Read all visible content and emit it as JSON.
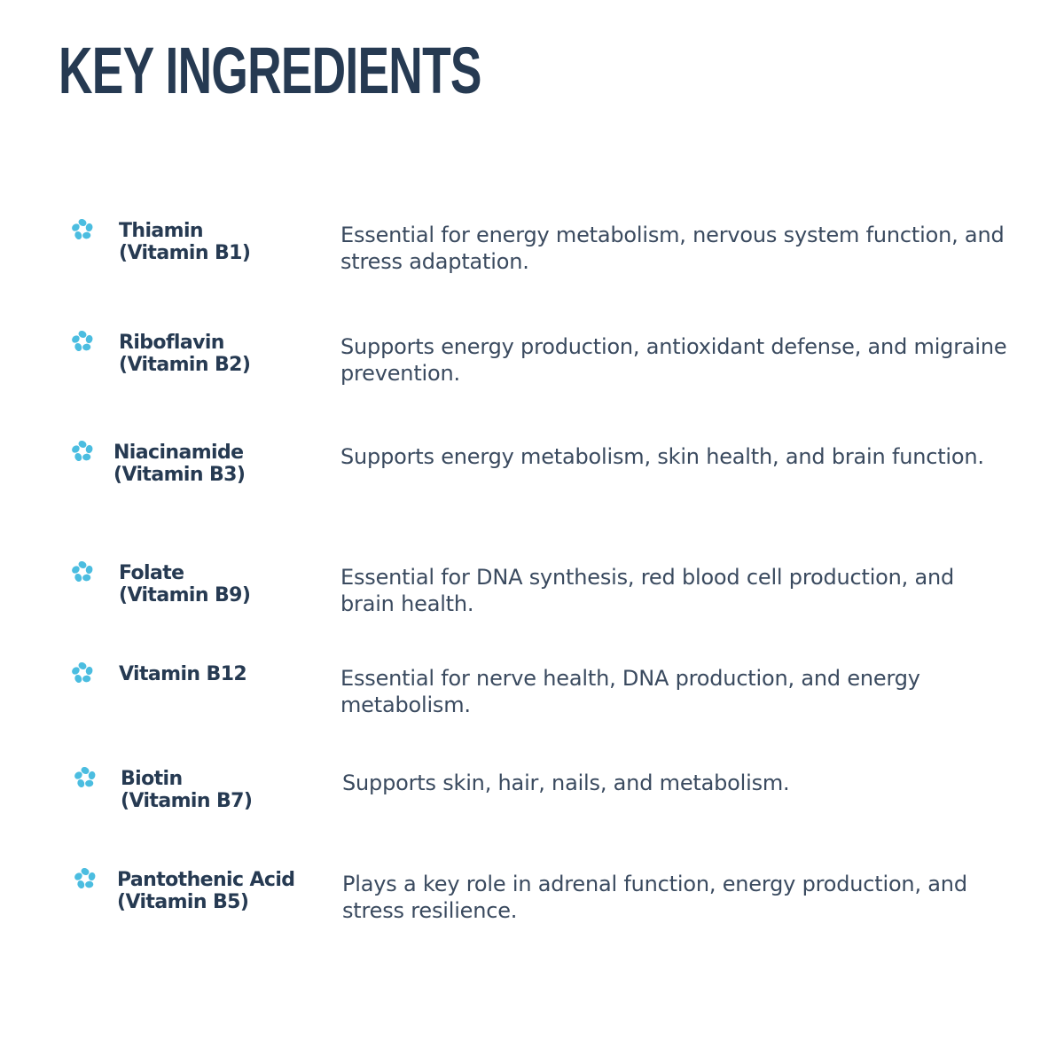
{
  "title": "KEY INGREDIENTS",
  "icon": {
    "name": "flower-dots-icon",
    "color": "#4bbde0"
  },
  "ingredients": [
    {
      "name": "Thiamin",
      "sub": "(Vitamin B1)",
      "desc": "Essential for energy metabolism, nervous system function, and stress adaptation."
    },
    {
      "name": "Riboflavin",
      "sub": "(Vitamin B2)",
      "desc": "Supports energy production, antioxidant defense, and migraine prevention."
    },
    {
      "name": "Niacinamide",
      "sub": "(Vitamin B3)",
      "desc": "Supports energy metabolism, skin health, and brain function."
    },
    {
      "name": "Folate",
      "sub": "(Vitamin B9)",
      "desc": "Essential for DNA synthesis, red blood cell production, and brain health."
    },
    {
      "name": "Vitamin B12",
      "sub": "",
      "desc": "Essential for nerve health, DNA production, and energy metabolism."
    },
    {
      "name": "Biotin",
      "sub": "(Vitamin B7)",
      "desc": "Supports skin, hair, nails, and metabolism."
    },
    {
      "name": "Pantothenic Acid",
      "sub": "(Vitamin B5)",
      "desc": "Plays a key role in adrenal function, energy production, and stress resilience."
    }
  ]
}
